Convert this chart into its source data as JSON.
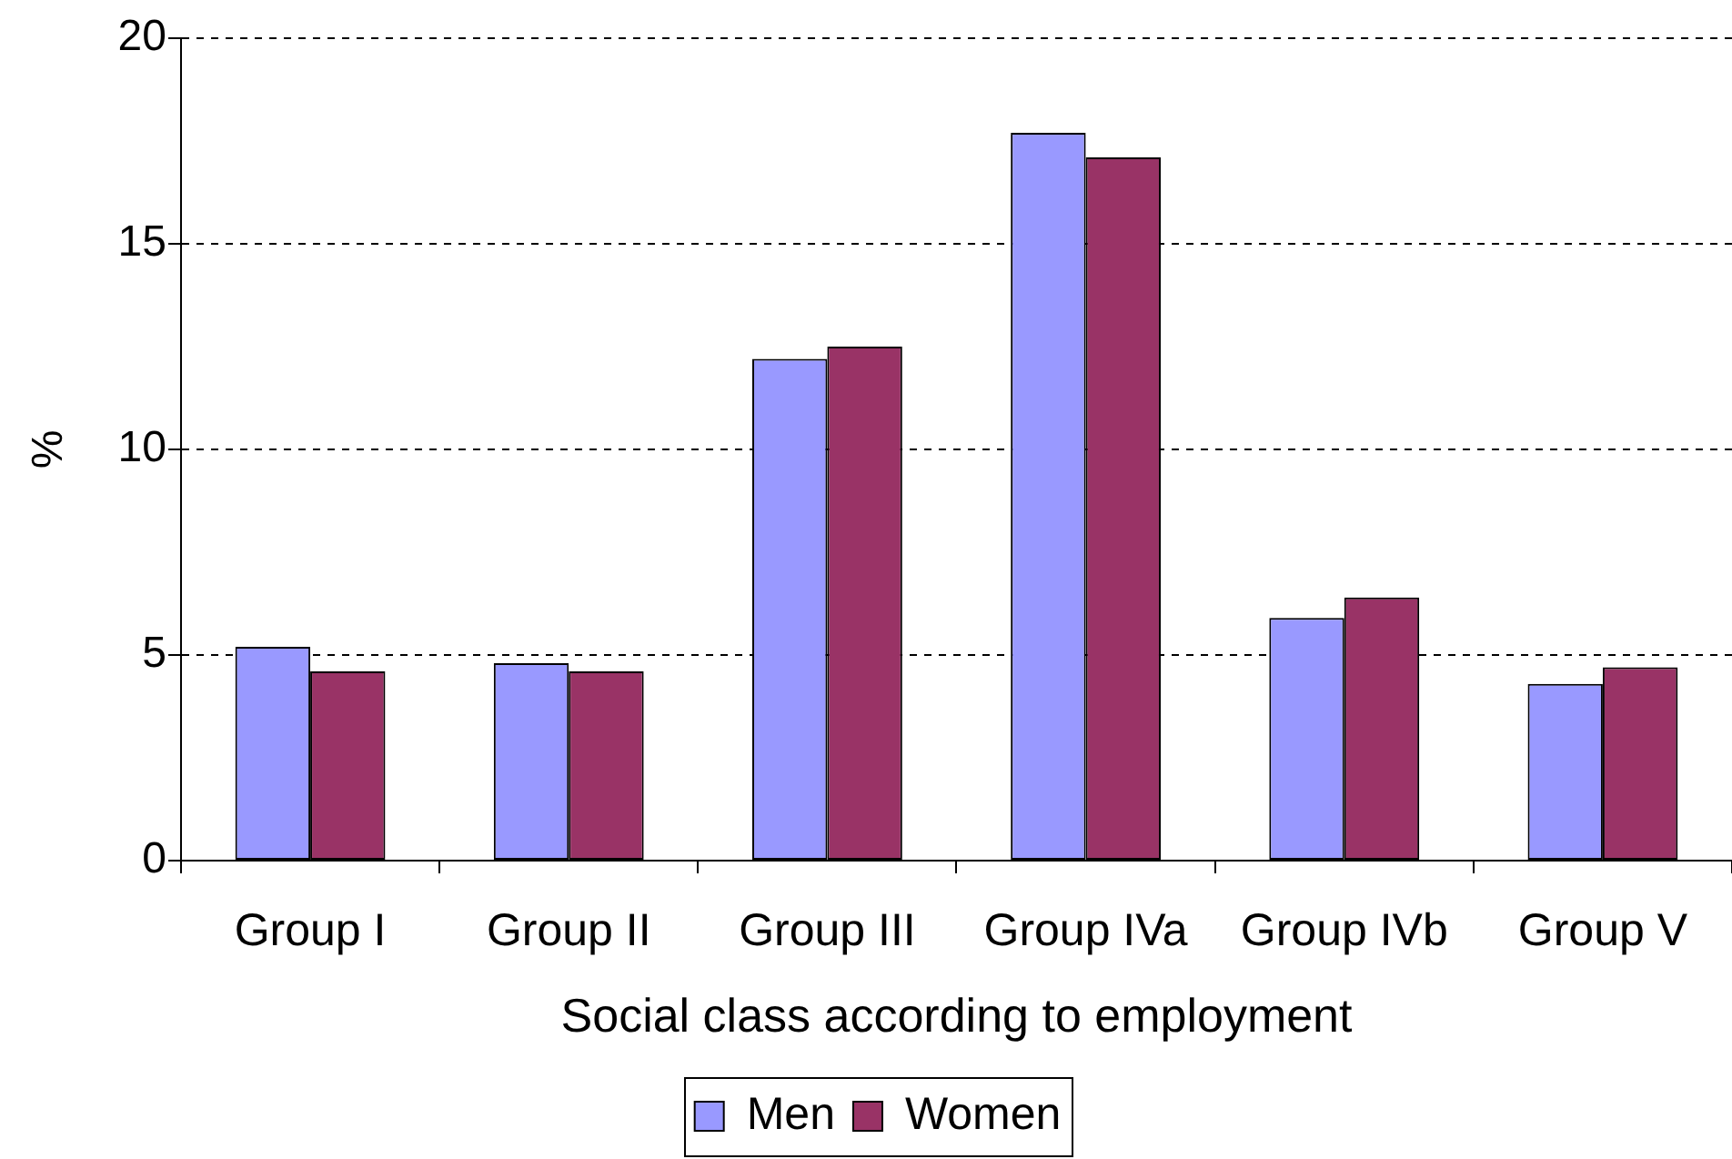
{
  "chart_data": {
    "type": "bar",
    "xlabel": "Social class according to employment",
    "ylabel": "%",
    "categories": [
      "Group I",
      "Group II",
      "Group III",
      "Group IVa",
      "Group IVb",
      "Group V"
    ],
    "series": [
      {
        "name": "Men",
        "color": "#9999ff",
        "values": [
          5.2,
          4.8,
          12.2,
          17.7,
          5.9,
          4.3
        ]
      },
      {
        "name": "Women",
        "color": "#993366",
        "values": [
          4.6,
          4.6,
          12.5,
          17.1,
          6.4,
          4.7
        ]
      }
    ],
    "ylim": [
      0,
      20
    ],
    "yticks": [
      0,
      5,
      10,
      15,
      20
    ],
    "grid": "y",
    "legend": "bottom"
  }
}
